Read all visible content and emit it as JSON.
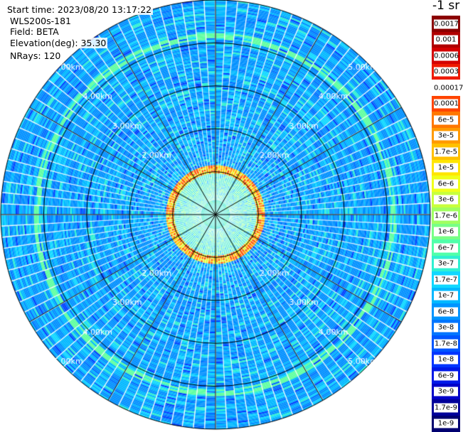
{
  "info": {
    "start_time": "Start time: 2023/08/20 13:17:22",
    "device": "WLS200s-181",
    "field": "Field: BETA",
    "elevation": "Elevation(deg): 35.30",
    "nrays": "NRays: 120"
  },
  "chart_data": {
    "type": "heatmap",
    "projection": "polar-ppi",
    "field": "BETA",
    "n_rays": 120,
    "range_rings_km": [
      1,
      2,
      3,
      4,
      5
    ],
    "range_ring_labels": [
      "2.00km",
      "3.00km",
      "4.00km",
      "5.00km"
    ],
    "spoke_angles_deg": [
      0,
      30,
      60,
      90,
      120,
      150,
      180,
      210,
      240,
      270,
      300,
      330
    ],
    "colorbar": {
      "unit": "-1 sr",
      "labels": [
        "0.0017",
        "0.001",
        "0.0006",
        "0.0003",
        "0.00017",
        "0.0001",
        "6e-5",
        "3e-5",
        "1.7e-5",
        "1e-5",
        "6e-6",
        "3e-6",
        "1.7e-6",
        "1e-6",
        "6e-7",
        "3e-7",
        "1.7e-7",
        "1e-7",
        "6e-8",
        "3e-8",
        "1.7e-8",
        "1e-8",
        "6e-9",
        "3e-9",
        "1.7e-9",
        "1e-9"
      ],
      "colors": [
        "#8b0000",
        "#b00000",
        "#d40000",
        "#ee1a00",
        "#ffffff",
        "#ff4400",
        "#ff7700",
        "#ff9a00",
        "#ffc000",
        "#ffe500",
        "#f0ff1a",
        "#c8ff3c",
        "#a0ff60",
        "#78ff86",
        "#50ffaa",
        "#30f0d2",
        "#10d8ff",
        "#00b8ff",
        "#0095ff",
        "#0075ff",
        "#0055ff",
        "#0035ff",
        "#0018e8",
        "#0000c8",
        "#00009a",
        "#000070"
      ]
    }
  }
}
